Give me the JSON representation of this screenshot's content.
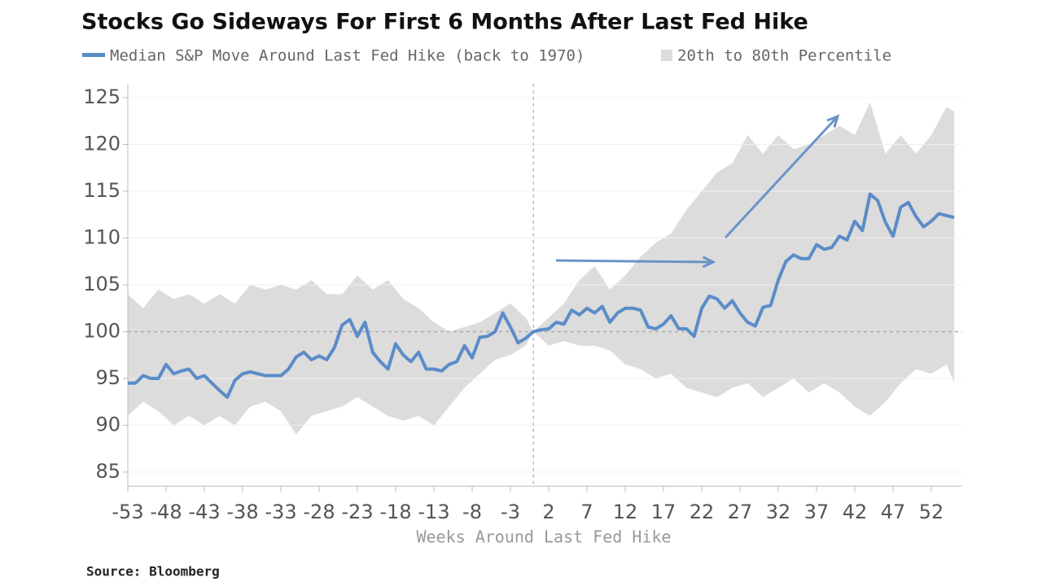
{
  "chart_data": {
    "type": "line",
    "title": "Stocks Go Sideways For First 6 Months After Last Fed Hike",
    "x_label": "Weeks Around Last Fed Hike",
    "source": "Source: Bloomberg",
    "xlim": [
      -53,
      56
    ],
    "ylim": [
      83.5,
      126.5
    ],
    "xticks": [
      -53,
      -48,
      -43,
      -38,
      -33,
      -28,
      -23,
      -18,
      -13,
      -8,
      -3,
      2,
      7,
      12,
      17,
      22,
      27,
      32,
      37,
      42,
      47,
      52
    ],
    "yticks": [
      85,
      90,
      95,
      100,
      105,
      110,
      115,
      120,
      125
    ],
    "grid": true,
    "series": [
      {
        "name": "Median S&P Move Around Last Fed Hike (back to 1970)",
        "color": "#5b8cc8",
        "x": [
          -53,
          -52,
          -51,
          -50,
          -49,
          -48,
          -47,
          -46,
          -45,
          -44,
          -43,
          -42,
          -41,
          -40,
          -39,
          -38,
          -37,
          -36,
          -35,
          -34,
          -33,
          -32,
          -31,
          -30,
          -29,
          -28,
          -27,
          -26,
          -25,
          -24,
          -23,
          -22,
          -21,
          -20,
          -19,
          -18,
          -17,
          -16,
          -15,
          -14,
          -13,
          -12,
          -11,
          -10,
          -9,
          -8,
          -7,
          -6,
          -5,
          -4,
          -3,
          -2,
          -1,
          0,
          1,
          2,
          3,
          4,
          5,
          6,
          7,
          8,
          9,
          10,
          11,
          12,
          13,
          14,
          15,
          16,
          17,
          18,
          19,
          20,
          21,
          22,
          23,
          24,
          25,
          26,
          27,
          28,
          29,
          30,
          31,
          32,
          33,
          34,
          35,
          36,
          37,
          38,
          39,
          40,
          41,
          42,
          43,
          44,
          45,
          46,
          47,
          48,
          49,
          50,
          51,
          52,
          53,
          54,
          55
        ],
        "values": [
          94.5,
          94.5,
          95.3,
          95,
          95,
          96.5,
          95.5,
          95.8,
          96,
          95,
          95.3,
          94.5,
          93.7,
          93,
          94.8,
          95.5,
          95.7,
          95.5,
          95.3,
          95.3,
          95.3,
          96,
          97.3,
          97.8,
          97,
          97.4,
          97,
          98.3,
          100.7,
          101.3,
          99.5,
          101,
          97.8,
          96.8,
          96,
          98.7,
          97.5,
          96.8,
          97.8,
          96,
          96,
          95.8,
          96.5,
          96.8,
          98.5,
          97.2,
          99.4,
          99.5,
          100,
          102,
          100.5,
          98.8,
          99.3,
          100,
          100.2,
          100.3,
          101,
          100.8,
          102.3,
          101.8,
          102.5,
          102,
          102.7,
          101,
          102,
          102.5,
          102.5,
          102.3,
          100.5,
          100.3,
          100.8,
          101.7,
          100.3,
          100.3,
          99.5,
          102.5,
          103.8,
          103.5,
          102.5,
          103.3,
          102,
          101,
          100.6,
          102.6,
          102.8,
          105.5,
          107.5,
          108.2,
          107.8,
          107.8,
          109.3,
          108.8,
          109,
          110.2,
          109.8,
          111.8,
          110.8,
          114.7,
          114,
          111.7,
          110.2,
          113.3,
          113.8,
          112.3,
          111.2,
          111.8,
          112.6,
          112.4,
          112.2
        ]
      }
    ],
    "band": {
      "name": "20th to 80th Percentile",
      "color": "#dcdcdc",
      "x": [
        -53,
        -51,
        -49,
        -47,
        -45,
        -43,
        -41,
        -39,
        -37,
        -35,
        -33,
        -31,
        -29,
        -27,
        -25,
        -23,
        -21,
        -19,
        -17,
        -15,
        -13,
        -11,
        -9,
        -7,
        -5,
        -3,
        -1,
        0,
        2,
        4,
        6,
        8,
        10,
        12,
        14,
        16,
        18,
        20,
        22,
        24,
        26,
        28,
        30,
        32,
        34,
        36,
        38,
        40,
        42,
        44,
        46,
        48,
        50,
        52,
        54,
        55
      ],
      "upper": [
        104,
        102.5,
        104.5,
        103.5,
        104,
        103,
        104,
        103,
        105,
        104.5,
        105,
        104.5,
        105.5,
        104,
        104,
        106,
        104.5,
        105.5,
        103.5,
        102.5,
        101,
        100,
        100.5,
        101,
        102,
        103,
        101.5,
        100,
        101.5,
        103,
        105.5,
        107,
        104.5,
        106,
        108,
        109.5,
        110.5,
        113,
        115,
        117,
        118,
        121,
        119,
        121,
        119.5,
        120,
        121,
        122,
        121,
        124.5,
        119,
        121,
        119,
        121,
        124,
        123.5
      ],
      "lower": [
        91,
        92.5,
        91.5,
        90,
        91,
        90,
        91,
        90,
        92,
        92.5,
        91.5,
        89,
        91,
        91.5,
        92,
        93,
        92,
        91,
        90.5,
        91,
        90,
        92,
        94,
        95.5,
        97,
        97.5,
        98.5,
        100,
        98.5,
        99,
        98.5,
        98.5,
        98,
        96.5,
        96,
        95,
        95.5,
        94,
        93.5,
        93,
        94,
        94.5,
        93,
        94,
        95,
        93.5,
        94.5,
        93.5,
        92,
        91,
        92.5,
        94.5,
        96,
        95.5,
        96.5,
        94.5
      ]
    }
  }
}
